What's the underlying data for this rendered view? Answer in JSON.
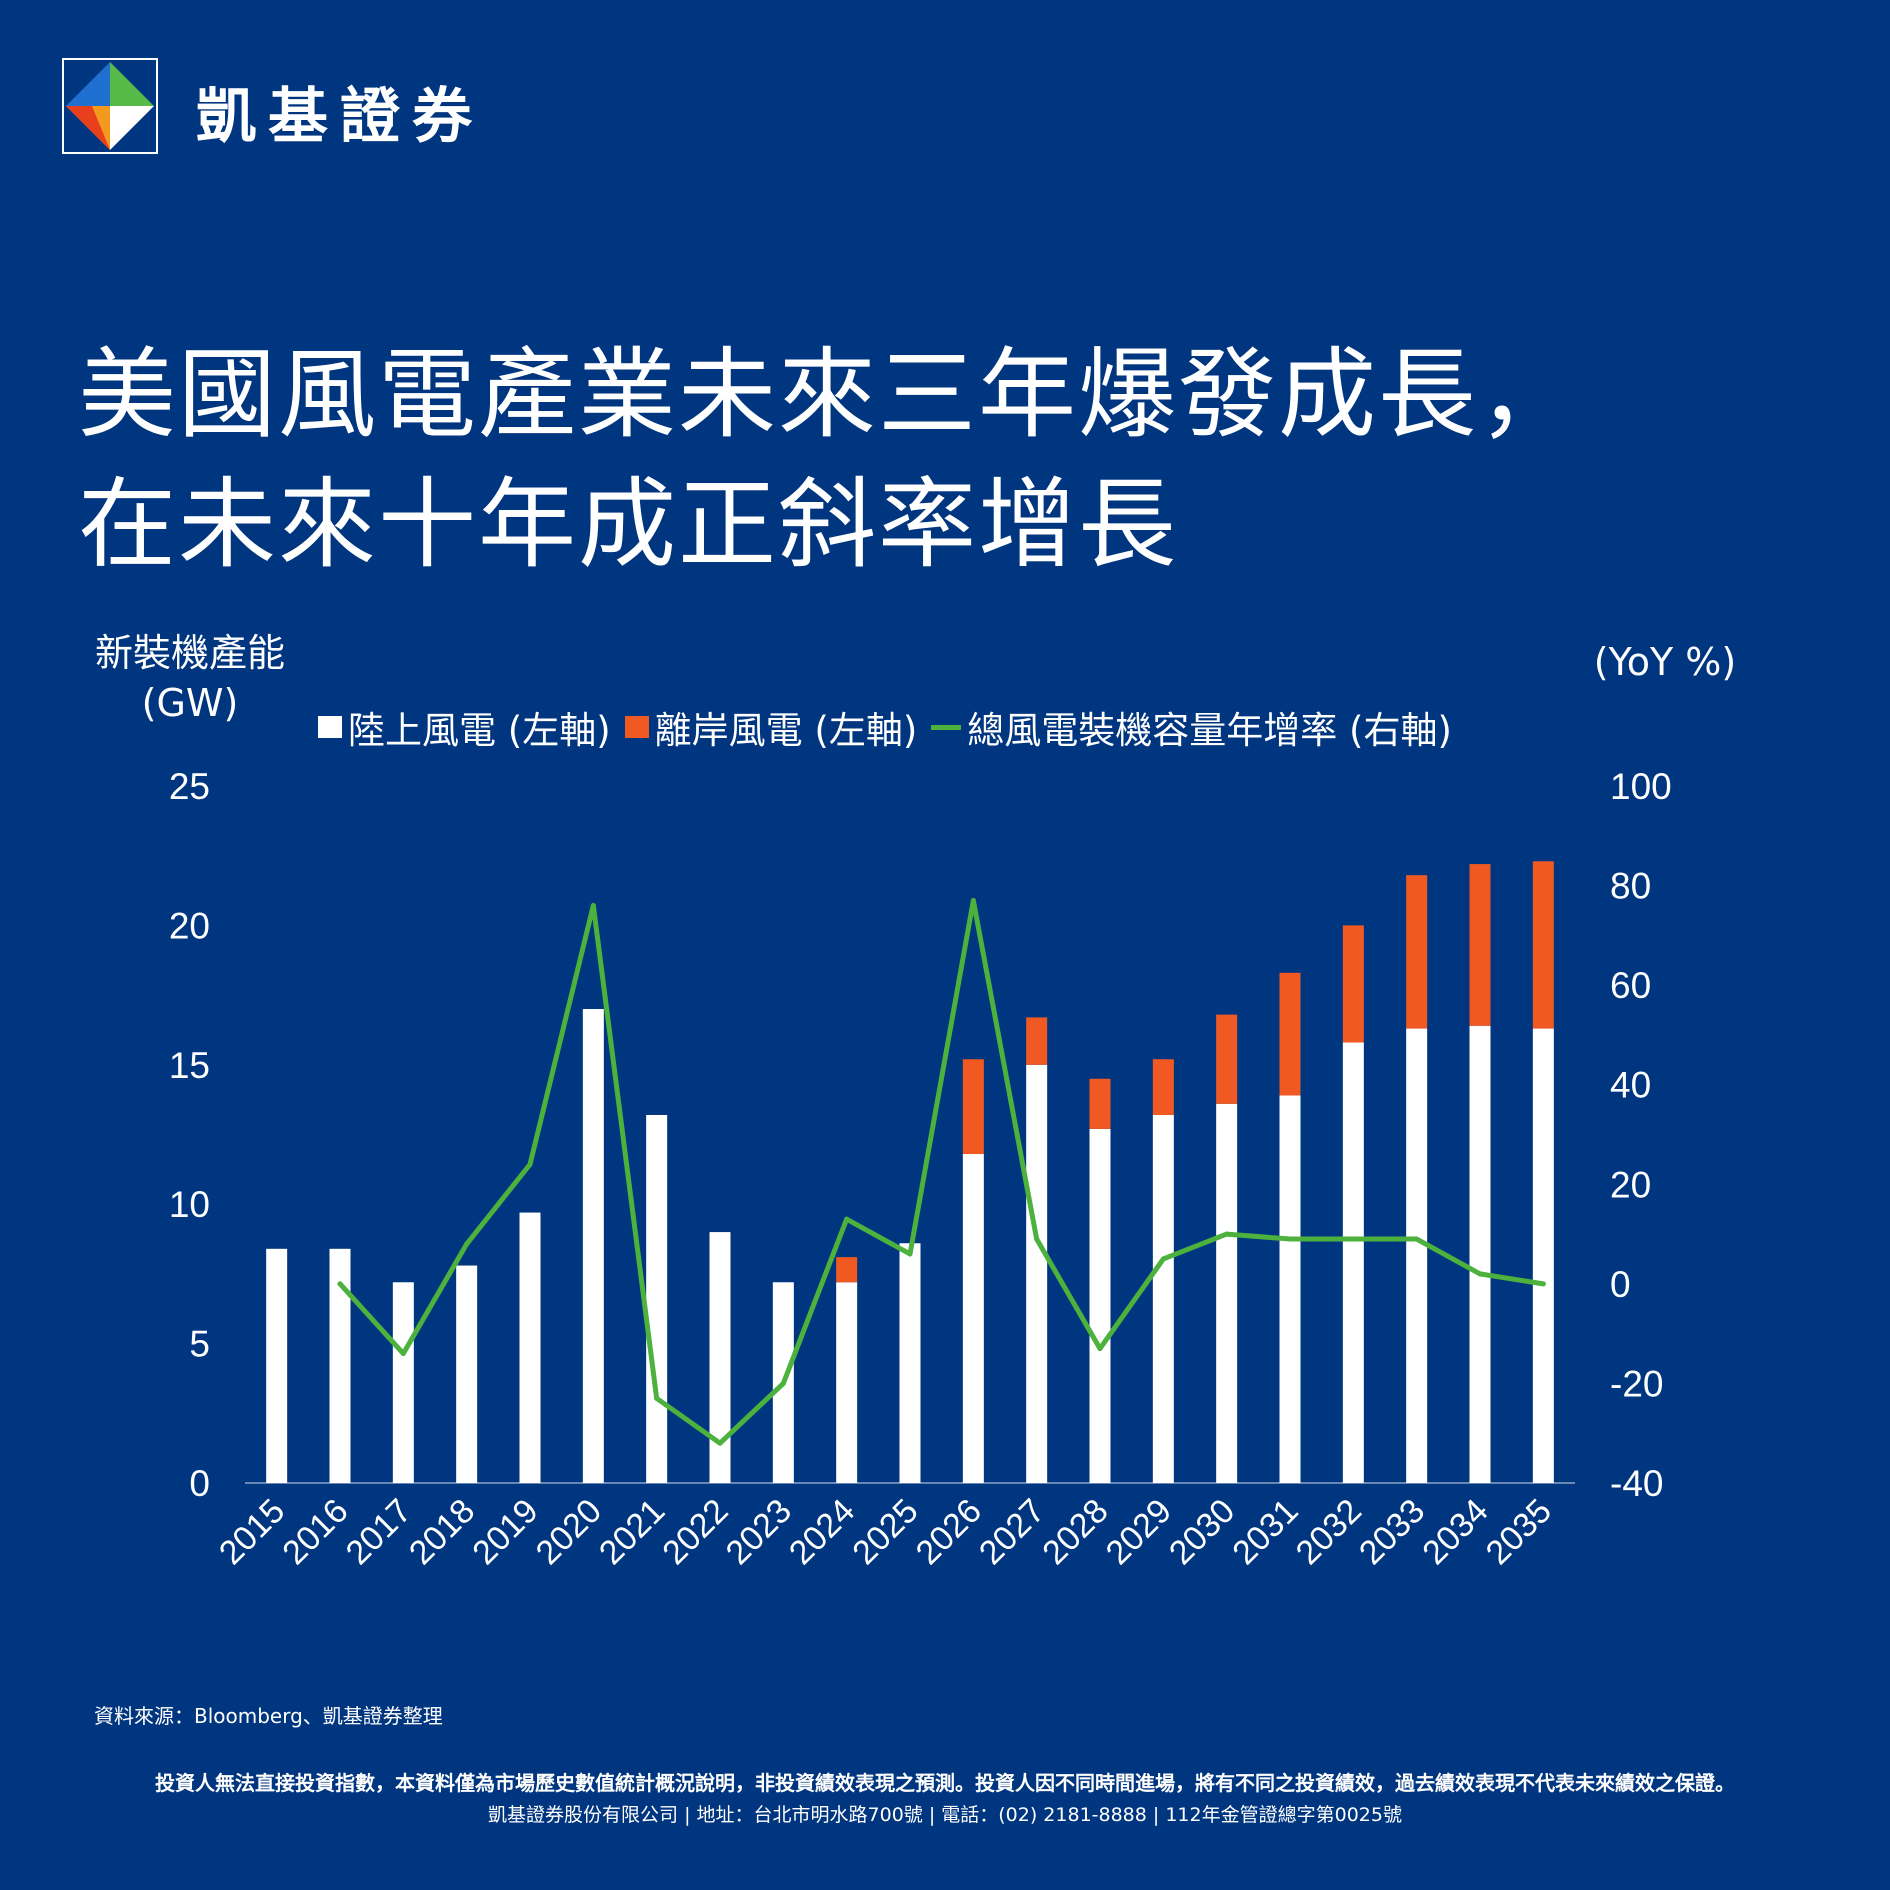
{
  "brand": {
    "name": "凱基證券"
  },
  "title": {
    "line1": "美國風電產業未來三年爆發成長，",
    "line2": "在未來十年成正斜率增長"
  },
  "axes": {
    "left_label_line1": "新裝機產能",
    "left_label_line2": "(GW)",
    "right_label": "(YoY %)"
  },
  "legend": [
    {
      "label": "陸上風電 (左軸)",
      "color": "#ffffff",
      "kind": "bar"
    },
    {
      "label": "離岸風電 (左軸)",
      "color": "#f05a22",
      "kind": "bar"
    },
    {
      "label": "總風電裝機容量年增率 (右軸)",
      "color": "#4cb13d",
      "kind": "line"
    }
  ],
  "chart_data": {
    "type": "bar",
    "stacked": true,
    "categories": [
      "2015",
      "2016",
      "2017",
      "2018",
      "2019",
      "2020",
      "2021",
      "2022",
      "2023",
      "2024",
      "2025",
      "2026",
      "2027",
      "2028",
      "2029",
      "2030",
      "2031",
      "2032",
      "2033",
      "2034",
      "2035"
    ],
    "series": [
      {
        "name": "陸上風電 (左軸)",
        "axis": "left",
        "color": "#ffffff",
        "values": [
          8.4,
          8.4,
          7.2,
          7.8,
          9.7,
          17.0,
          13.2,
          9.0,
          7.2,
          7.2,
          8.6,
          11.8,
          15.0,
          12.7,
          13.2,
          13.6,
          13.9,
          15.8,
          16.3,
          16.4,
          16.3
        ]
      },
      {
        "name": "離岸風電 (左軸)",
        "axis": "left",
        "color": "#f05a22",
        "values": [
          0,
          0,
          0,
          0,
          0,
          0,
          0,
          0,
          0,
          0.9,
          0,
          3.4,
          1.7,
          1.8,
          2.0,
          3.2,
          4.4,
          4.2,
          5.5,
          5.8,
          6.0
        ]
      },
      {
        "name": "總風電裝機容量年增率 (右軸)",
        "axis": "right",
        "type": "line",
        "color": "#4cb13d",
        "values": [
          null,
          0,
          -14,
          8,
          24,
          76,
          -23,
          -32,
          -20,
          13,
          6,
          77,
          9,
          -13,
          5,
          10,
          9,
          9,
          9,
          2,
          0
        ]
      }
    ],
    "ylim_left": [
      0,
      25
    ],
    "yticks_left": [
      "0",
      "5",
      "10",
      "15",
      "20",
      "25"
    ],
    "ylim_right": [
      -40,
      100
    ],
    "yticks_right": [
      "-40",
      "-20",
      "0",
      "20",
      "40",
      "60",
      "80",
      "100"
    ]
  },
  "footer": {
    "source": "資料來源：Bloomberg、凱基證券整理",
    "disclaimer": "投資人無法直接投資指數，本資料僅為市場歷史數值統計概況說明，非投資績效表現之預測。投資人因不同時間進場，將有不同之投資績效，過去績效表現不代表未來績效之保證。",
    "company": "凱基證券股份有限公司 | 地址：台北市明水路700號 | 電話：(02) 2181-8888 | 112年金管證總字第0025號"
  }
}
